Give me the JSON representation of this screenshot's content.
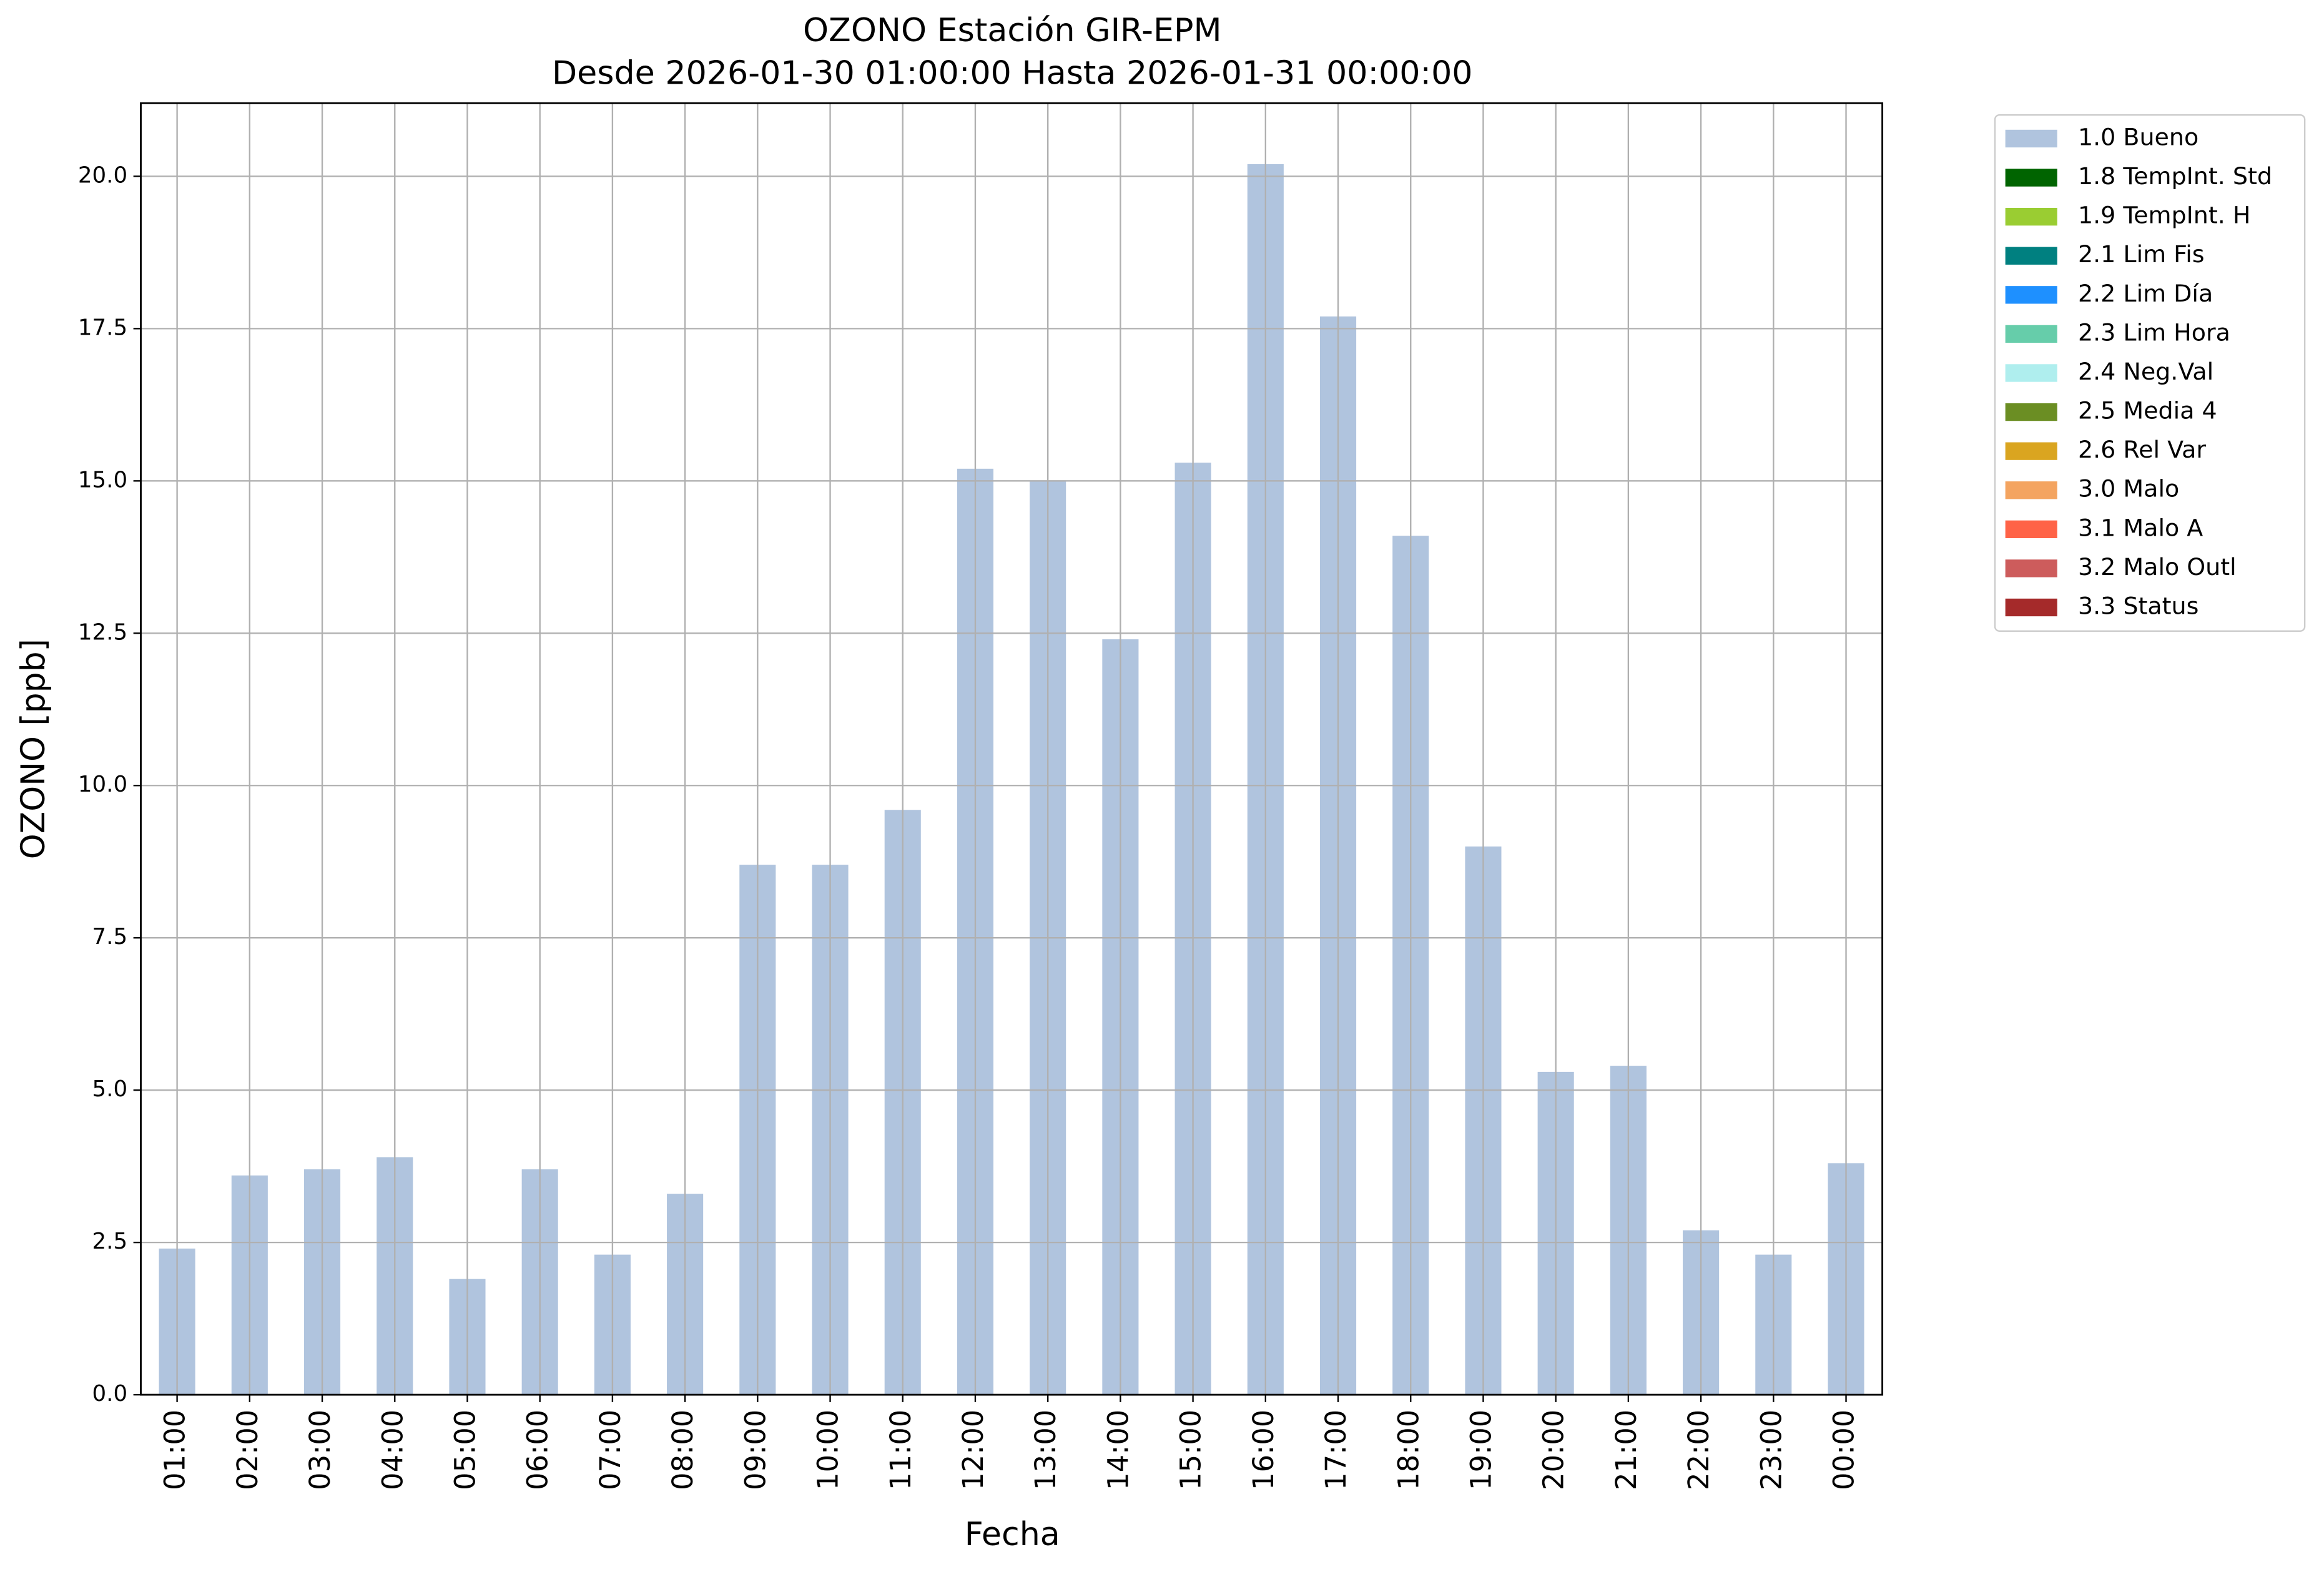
{
  "chart_data": {
    "type": "bar",
    "title": "OZONO Estación GIR-EPM",
    "subtitle": "Desde 2026-01-30 01:00:00 Hasta 2026-01-31 00:00:00",
    "x_label": "Fecha",
    "y_label": "OZONO [ppb]",
    "categories": [
      "01:00",
      "02:00",
      "03:00",
      "04:00",
      "05:00",
      "06:00",
      "07:00",
      "08:00",
      "09:00",
      "10:00",
      "11:00",
      "12:00",
      "13:00",
      "14:00",
      "15:00",
      "16:00",
      "17:00",
      "18:00",
      "19:00",
      "20:00",
      "21:00",
      "22:00",
      "23:00",
      "00:00"
    ],
    "series": [
      {
        "name": "1.0 Bueno",
        "color": "#b0c4de",
        "values": [
          2.4,
          3.6,
          3.7,
          3.9,
          1.9,
          3.7,
          2.3,
          3.3,
          8.7,
          8.7,
          9.6,
          15.2,
          15.0,
          12.4,
          15.3,
          20.2,
          17.7,
          14.1,
          9.0,
          5.3,
          5.4,
          2.7,
          2.3,
          3.8
        ]
      }
    ],
    "legend_entries": [
      {
        "name": "1.0 Bueno",
        "color": "#b0c4de"
      },
      {
        "name": "1.8 TempInt. Std",
        "color": "#006400"
      },
      {
        "name": "1.9 TempInt. H",
        "color": "#9acd32"
      },
      {
        "name": "2.1 Lim Fis",
        "color": "#008080"
      },
      {
        "name": "2.2 Lim Día",
        "color": "#1e90ff"
      },
      {
        "name": "2.3 Lim Hora",
        "color": "#66cdaa"
      },
      {
        "name": "2.4 Neg.Val",
        "color": "#afeeee"
      },
      {
        "name": "2.5 Media 4",
        "color": "#6b8e23"
      },
      {
        "name": "2.6 Rel Var",
        "color": "#daa520"
      },
      {
        "name": "3.0 Malo",
        "color": "#f4a460"
      },
      {
        "name": "3.1 Malo A",
        "color": "#ff6347"
      },
      {
        "name": "3.2 Malo Outl",
        "color": "#cd5c5c"
      },
      {
        "name": "3.3 Status",
        "color": "#a52a2a"
      }
    ],
    "legend": "outside-right",
    "ylim": [
      0,
      21.2
    ],
    "yticks": [
      {
        "value": 0,
        "label": "0.0"
      },
      2.5,
      {
        "value": 5,
        "label": "5.0"
      },
      7.5,
      {
        "value": 10,
        "label": "10.0"
      },
      12.5,
      {
        "value": 15,
        "label": "15.0"
      },
      17.5,
      {
        "value": 20,
        "label": "20.0"
      }
    ],
    "grid": true
  }
}
